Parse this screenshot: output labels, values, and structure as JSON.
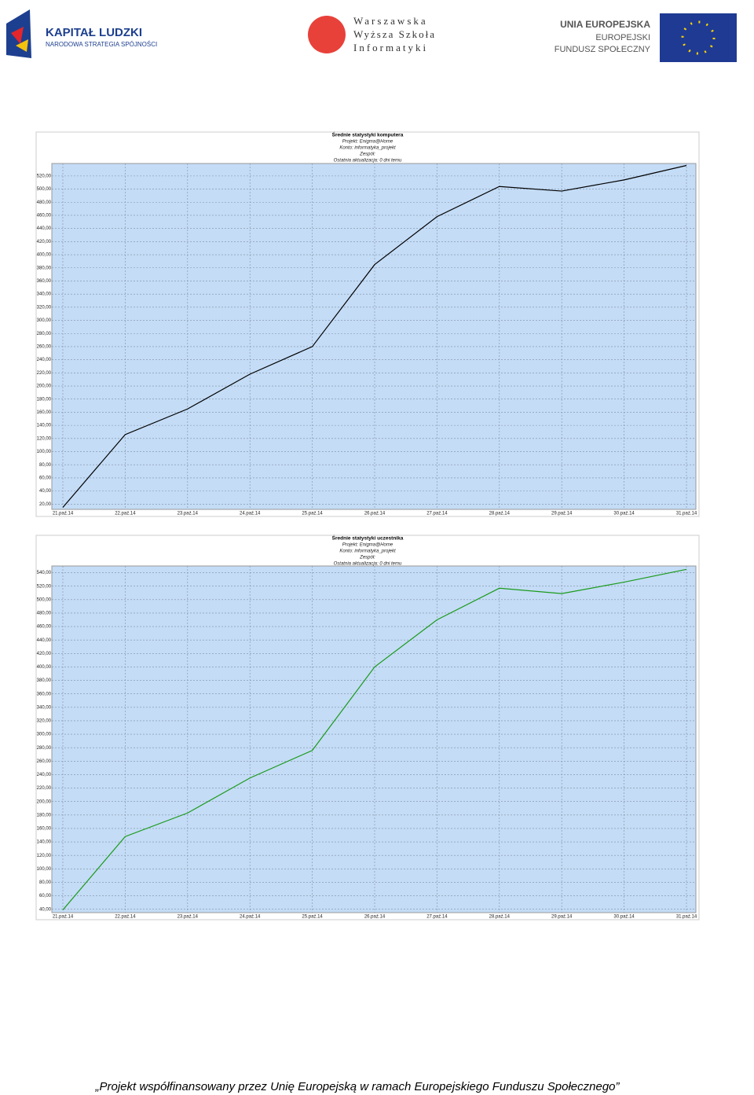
{
  "header": {
    "logo_left": {
      "title": "KAPITAŁ LUDZKI",
      "subtitle": "NARODOWA STRATEGIA SPÓJNOŚCI"
    },
    "logo_center": {
      "line1": "Warszawska",
      "line2": "Wyższa Szkoła",
      "line3": "Informatyki"
    },
    "logo_right": {
      "line1": "UNIA EUROPEJSKA",
      "line2": "EUROPEJSKI",
      "line3": "FUNDUSZ SPOŁECZNY"
    }
  },
  "chart_data": [
    {
      "type": "line",
      "title": "Średnie statystyki komputera",
      "subtitle_lines": [
        "Projekt: Enigma@Home",
        "Konto: informatyka_projekt",
        "Zespół:",
        "Ostatnia aktualizacja: 0 dni temu"
      ],
      "categories": [
        "21.paź.14",
        "22.paź.14",
        "23.paź.14",
        "24.paź.14",
        "25.paź.14",
        "26.paź.14",
        "27.paź.14",
        "28.paź.14",
        "29.paź.14",
        "30.paź.14",
        "31.paź.14"
      ],
      "series": [
        {
          "color": "#000000",
          "values": [
            15,
            126,
            165,
            218,
            260,
            385,
            458,
            504,
            497,
            514,
            536
          ]
        }
      ],
      "ylim": [
        12,
        539
      ],
      "yticks": [
        {
          "value": 20,
          "label": "20,00"
        },
        {
          "value": 40,
          "label": "40,00"
        },
        {
          "value": 60,
          "label": "60,00"
        },
        {
          "value": 80,
          "label": "80,00"
        },
        {
          "value": 100,
          "label": "100,00"
        },
        {
          "value": 120,
          "label": "120,00"
        },
        {
          "value": 140,
          "label": "140,00"
        },
        {
          "value": 160,
          "label": "160,00"
        },
        {
          "value": 180,
          "label": "180,00"
        },
        {
          "value": 200,
          "label": "200,00"
        },
        {
          "value": 220,
          "label": "220,00"
        },
        {
          "value": 240,
          "label": "240,00"
        },
        {
          "value": 260,
          "label": "260,00"
        },
        {
          "value": 280,
          "label": "280,00"
        },
        {
          "value": 300,
          "label": "300,00"
        },
        {
          "value": 320,
          "label": "320,00"
        },
        {
          "value": 340,
          "label": "340,00"
        },
        {
          "value": 360,
          "label": "360,00"
        },
        {
          "value": 380,
          "label": "380,00"
        },
        {
          "value": 400,
          "label": "400,00"
        },
        {
          "value": 420,
          "label": "420,00"
        },
        {
          "value": 440,
          "label": "440,00"
        },
        {
          "value": 460,
          "label": "460,00"
        },
        {
          "value": 480,
          "label": "480,00"
        },
        {
          "value": 500,
          "label": "500,00"
        },
        {
          "value": 520,
          "label": "520,00"
        }
      ],
      "grid": true
    },
    {
      "type": "line",
      "title": "Średnie statystyki uczestnika",
      "subtitle_lines": [
        "Projekt: Enigma@Home",
        "Konto: informatyka_projekt",
        "Zespół:",
        "Ostatnia aktualizacja: 0 dni temu"
      ],
      "categories": [
        "21.paź.14",
        "22.paź.14",
        "23.paź.14",
        "24.paź.14",
        "25.paź.14",
        "26.paź.14",
        "27.paź.14",
        "28.paź.14",
        "29.paź.14",
        "30.paź.14",
        "31.paź.14"
      ],
      "series": [
        {
          "color": "#1a9a1a",
          "values": [
            39,
            148,
            183,
            235,
            276,
            400,
            470,
            517,
            509,
            526,
            545
          ]
        }
      ],
      "ylim": [
        35,
        550
      ],
      "yticks": [
        {
          "value": 40,
          "label": "40,00"
        },
        {
          "value": 60,
          "label": "60,00"
        },
        {
          "value": 80,
          "label": "80,00"
        },
        {
          "value": 100,
          "label": "100,00"
        },
        {
          "value": 120,
          "label": "120,00"
        },
        {
          "value": 140,
          "label": "140,00"
        },
        {
          "value": 160,
          "label": "160,00"
        },
        {
          "value": 180,
          "label": "180,00"
        },
        {
          "value": 200,
          "label": "200,00"
        },
        {
          "value": 220,
          "label": "220,00"
        },
        {
          "value": 240,
          "label": "240,00"
        },
        {
          "value": 260,
          "label": "260,00"
        },
        {
          "value": 280,
          "label": "280,00"
        },
        {
          "value": 300,
          "label": "300,00"
        },
        {
          "value": 320,
          "label": "320,00"
        },
        {
          "value": 340,
          "label": "340,00"
        },
        {
          "value": 360,
          "label": "360,00"
        },
        {
          "value": 380,
          "label": "380,00"
        },
        {
          "value": 400,
          "label": "400,00"
        },
        {
          "value": 420,
          "label": "420,00"
        },
        {
          "value": 440,
          "label": "440,00"
        },
        {
          "value": 460,
          "label": "460,00"
        },
        {
          "value": 480,
          "label": "480,00"
        },
        {
          "value": 500,
          "label": "500,00"
        },
        {
          "value": 520,
          "label": "520,00"
        },
        {
          "value": 540,
          "label": "540,00"
        }
      ],
      "grid": true
    }
  ],
  "footer": "„Projekt współfinansowany przez Unię Europejską w ramach Europejskiego Funduszu Społecznego”"
}
